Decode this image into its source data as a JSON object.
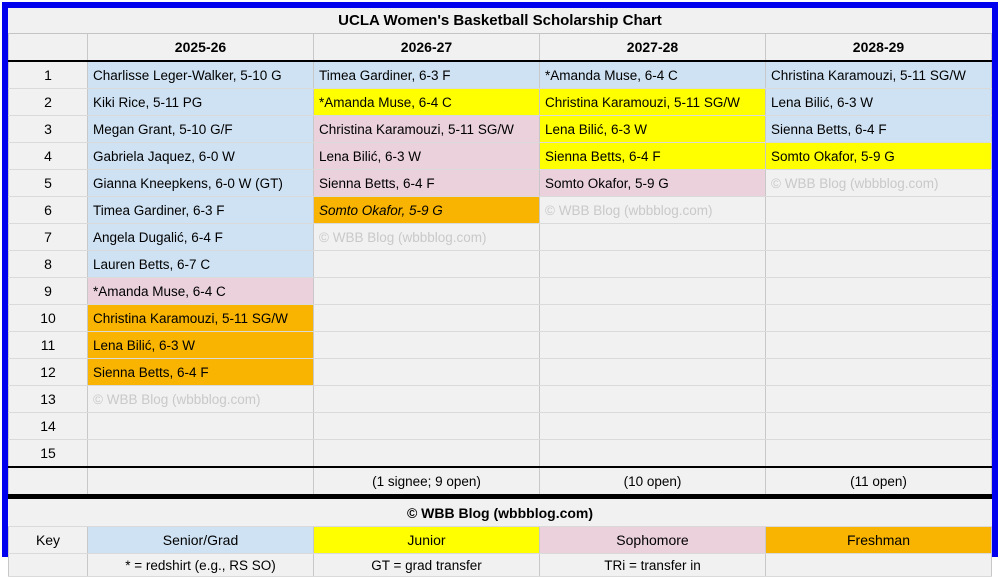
{
  "colors": {
    "frame_border": "#0000ee",
    "senior_grad": "#cfe2f3",
    "junior": "#ffff00",
    "sophomore": "#ead1dc",
    "freshman": "#f8b400",
    "watermark_text": "#c9c9c9",
    "sheet_background": "#f1f1f1"
  },
  "style_key": {
    "sr": "senior-grad (light blue)",
    "jr": "junior (yellow)",
    "so": "sophomore (pink)",
    "fr": "freshman (amber)",
    "frs": "freshman signee (amber italic)",
    "wm": "watermark"
  },
  "chart_data": {
    "type": "table",
    "title": "UCLA Women's Basketball Scholarship Chart",
    "columns": [
      "",
      "2025-26",
      "2026-27",
      "2027-28",
      "2028-29"
    ],
    "rows": [
      {
        "n": "1",
        "c": [
          [
            "Charlisse Leger-Walker, 5-10 G",
            "sr"
          ],
          [
            "Timea Gardiner, 6-3 F",
            "sr"
          ],
          [
            "*Amanda Muse, 6-4 C",
            "sr"
          ],
          [
            "Christina Karamouzi, 5-11 SG/W",
            "sr"
          ]
        ]
      },
      {
        "n": "2",
        "c": [
          [
            "Kiki Rice, 5-11 PG",
            "sr"
          ],
          [
            "*Amanda Muse, 6-4 C",
            "jr"
          ],
          [
            "Christina Karamouzi, 5-11 SG/W",
            "jr"
          ],
          [
            "Lena Bilić, 6-3 W",
            "sr"
          ]
        ]
      },
      {
        "n": "3",
        "c": [
          [
            "Megan Grant, 5-10 G/F",
            "sr"
          ],
          [
            "Christina Karamouzi, 5-11 SG/W",
            "so"
          ],
          [
            "Lena Bilić, 6-3 W",
            "jr"
          ],
          [
            "Sienna Betts, 6-4 F",
            "sr"
          ]
        ]
      },
      {
        "n": "4",
        "c": [
          [
            "Gabriela Jaquez, 6-0 W",
            "sr"
          ],
          [
            "Lena Bilić, 6-3 W",
            "so"
          ],
          [
            "Sienna Betts, 6-4 F",
            "jr"
          ],
          [
            "Somto Okafor, 5-9 G",
            "jr"
          ]
        ]
      },
      {
        "n": "5",
        "c": [
          [
            "Gianna Kneepkens, 6-0 W (GT)",
            "sr"
          ],
          [
            "Sienna Betts, 6-4 F",
            "so"
          ],
          [
            "Somto Okafor, 5-9 G",
            "so"
          ],
          [
            "© WBB Blog (wbbblog.com)",
            "wm"
          ]
        ]
      },
      {
        "n": "6",
        "c": [
          [
            "Timea Gardiner, 6-3 F",
            "sr"
          ],
          [
            "Somto Okafor, 5-9 G",
            "frs"
          ],
          [
            "© WBB Blog (wbbblog.com)",
            "wm"
          ],
          [
            "",
            ""
          ]
        ]
      },
      {
        "n": "7",
        "c": [
          [
            "Angela Dugalić, 6-4 F",
            "sr"
          ],
          [
            "© WBB Blog (wbbblog.com)",
            "wm"
          ],
          [
            "",
            ""
          ],
          [
            "",
            ""
          ]
        ]
      },
      {
        "n": "8",
        "c": [
          [
            "Lauren Betts, 6-7 C",
            "sr"
          ],
          [
            "",
            ""
          ],
          [
            "",
            ""
          ],
          [
            "",
            ""
          ]
        ]
      },
      {
        "n": "9",
        "c": [
          [
            "*Amanda Muse, 6-4 C",
            "so"
          ],
          [
            "",
            ""
          ],
          [
            "",
            ""
          ],
          [
            "",
            ""
          ]
        ]
      },
      {
        "n": "10",
        "c": [
          [
            "Christina Karamouzi, 5-11 SG/W",
            "fr"
          ],
          [
            "",
            ""
          ],
          [
            "",
            ""
          ],
          [
            "",
            ""
          ]
        ]
      },
      {
        "n": "11",
        "c": [
          [
            "Lena Bilić, 6-3 W",
            "fr"
          ],
          [
            "",
            ""
          ],
          [
            "",
            ""
          ],
          [
            "",
            ""
          ]
        ]
      },
      {
        "n": "12",
        "c": [
          [
            "Sienna Betts, 6-4 F",
            "fr"
          ],
          [
            "",
            ""
          ],
          [
            "",
            ""
          ],
          [
            "",
            ""
          ]
        ]
      },
      {
        "n": "13",
        "c": [
          [
            "© WBB Blog (wbbblog.com)",
            "wm"
          ],
          [
            "",
            ""
          ],
          [
            "",
            ""
          ],
          [
            "",
            ""
          ]
        ]
      },
      {
        "n": "14",
        "c": [
          [
            "",
            ""
          ],
          [
            "",
            ""
          ],
          [
            "",
            ""
          ],
          [
            "",
            ""
          ]
        ]
      },
      {
        "n": "15",
        "c": [
          [
            "",
            ""
          ],
          [
            "",
            ""
          ],
          [
            "",
            ""
          ],
          [
            "",
            ""
          ]
        ]
      }
    ],
    "totals_row": [
      "",
      "",
      "(1 signee; 9 open)",
      "(10 open)",
      "(11 open)"
    ],
    "copyright": "© WBB Blog (wbbblog.com)",
    "key": {
      "label": "Key",
      "items": [
        {
          "label": "Senior/Grad",
          "style": "sr"
        },
        {
          "label": "Junior",
          "style": "jr"
        },
        {
          "label": "Sophomore",
          "style": "so"
        },
        {
          "label": "Freshman",
          "style": "fr"
        }
      ]
    },
    "legend": [
      "",
      "* = redshirt (e.g., RS SO)",
      "GT = grad transfer",
      "TRi = transfer in",
      ""
    ]
  }
}
